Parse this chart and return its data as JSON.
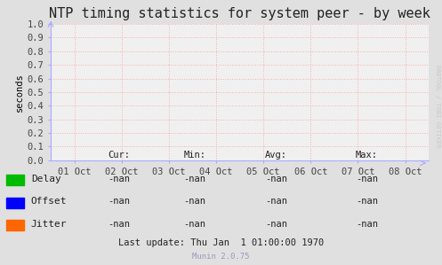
{
  "title": "NTP timing statistics for system peer - by week",
  "ylabel": "seconds",
  "background_color": "#e0e0e0",
  "plot_bg_color": "#f0f0f0",
  "grid_color": "#ffaaaa",
  "ylim": [
    0.0,
    1.0
  ],
  "yticks": [
    0.0,
    0.1,
    0.2,
    0.3,
    0.4,
    0.5,
    0.6,
    0.7,
    0.8,
    0.9,
    1.0
  ],
  "xtick_labels": [
    "01 Oct",
    "02 Oct",
    "03 Oct",
    "04 Oct",
    "05 Oct",
    "06 Oct",
    "07 Oct",
    "08 Oct"
  ],
  "legend_items": [
    {
      "label": "Delay",
      "color": "#00bb00"
    },
    {
      "label": "Offset",
      "color": "#0000ff"
    },
    {
      "label": "Jitter",
      "color": "#ff6600"
    }
  ],
  "stats_headers": [
    "Cur:",
    "Min:",
    "Avg:",
    "Max:"
  ],
  "stats_rows": [
    [
      "-nan",
      "-nan",
      "-nan",
      "-nan"
    ],
    [
      "-nan",
      "-nan",
      "-nan",
      "-nan"
    ],
    [
      "-nan",
      "-nan",
      "-nan",
      "-nan"
    ]
  ],
  "last_update": "Last update: Thu Jan  1 01:00:00 1970",
  "munin_version": "Munin 2.0.75",
  "watermark": "RRDTOOL / TOBI OETIKER",
  "title_fontsize": 11,
  "axis_fontsize": 7.5,
  "legend_fontsize": 8,
  "stats_fontsize": 7.5,
  "watermark_fontsize": 5,
  "munin_fontsize": 6.5,
  "arrow_color": "#aaaaff",
  "spine_color": "#aaaaff"
}
